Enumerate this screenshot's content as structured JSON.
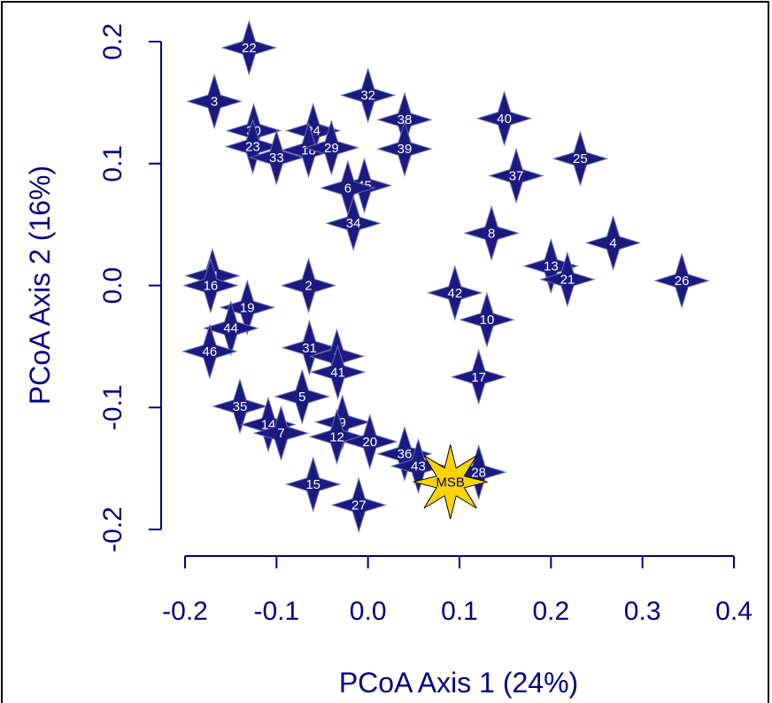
{
  "chart_data": {
    "type": "scatter",
    "xlabel": "PCoA Axis 1 (24%)",
    "ylabel": "PCoA Axis 2 (16%)",
    "xlim": [
      -0.2,
      0.4
    ],
    "ylim": [
      -0.2,
      0.2
    ],
    "xticks": [
      -0.2,
      -0.1,
      0.0,
      0.1,
      0.2,
      0.3,
      0.4
    ],
    "xtick_labels": [
      "-0.2",
      "-0.1",
      "0.0",
      "0.1",
      "0.2",
      "0.3",
      "0.4"
    ],
    "yticks": [
      -0.2,
      -0.1,
      0.0,
      0.1,
      0.2
    ],
    "ytick_labels": [
      "-0.2",
      "-0.1",
      "0.0",
      "0.1",
      "0.2"
    ],
    "grid": false,
    "colors": {
      "axis": "#000080",
      "point_fill": "#1a1a80",
      "point_stroke": "#6a6ab0",
      "point_text": "#ffffff",
      "highlight_fill": "#ffd400",
      "highlight_stroke": "#000000",
      "frame": "#000000"
    },
    "points": [
      {
        "label": "22",
        "x": -0.13,
        "y": 0.195
      },
      {
        "label": "3",
        "x": -0.168,
        "y": 0.151
      },
      {
        "label": "32",
        "x": 0.0,
        "y": 0.156
      },
      {
        "label": "38",
        "x": 0.04,
        "y": 0.136
      },
      {
        "label": "40",
        "x": 0.149,
        "y": 0.137
      },
      {
        "label": "30",
        "x": -0.125,
        "y": 0.127
      },
      {
        "label": "24",
        "x": -0.06,
        "y": 0.127
      },
      {
        "label": "23",
        "x": -0.126,
        "y": 0.114
      },
      {
        "label": "33",
        "x": -0.1,
        "y": 0.105
      },
      {
        "label": "18",
        "x": -0.065,
        "y": 0.111
      },
      {
        "label": "29",
        "x": -0.04,
        "y": 0.113
      },
      {
        "label": "39",
        "x": 0.04,
        "y": 0.112
      },
      {
        "label": "25",
        "x": 0.232,
        "y": 0.104
      },
      {
        "label": "37",
        "x": 0.162,
        "y": 0.09
      },
      {
        "label": "45",
        "x": -0.004,
        "y": 0.082
      },
      {
        "label": "6",
        "x": -0.022,
        "y": 0.08
      },
      {
        "label": "34",
        "x": -0.016,
        "y": 0.051
      },
      {
        "label": "8",
        "x": 0.135,
        "y": 0.043
      },
      {
        "label": "4",
        "x": 0.268,
        "y": 0.035
      },
      {
        "label": "13",
        "x": 0.2,
        "y": 0.016
      },
      {
        "label": "21",
        "x": 0.218,
        "y": 0.005
      },
      {
        "label": "26",
        "x": 0.343,
        "y": 0.004
      },
      {
        "label": "11",
        "x": -0.17,
        "y": 0.008
      },
      {
        "label": "16",
        "x": -0.172,
        "y": 0.0
      },
      {
        "label": "2",
        "x": -0.065,
        "y": 0.0
      },
      {
        "label": "42",
        "x": 0.095,
        "y": -0.006
      },
      {
        "label": "19",
        "x": -0.132,
        "y": -0.018
      },
      {
        "label": "10",
        "x": 0.13,
        "y": -0.028
      },
      {
        "label": "44",
        "x": -0.15,
        "y": -0.035
      },
      {
        "label": "46",
        "x": -0.173,
        "y": -0.054
      },
      {
        "label": "31",
        "x": -0.064,
        "y": -0.051
      },
      {
        "label": "1",
        "x": -0.034,
        "y": -0.058
      },
      {
        "label": "41",
        "x": -0.033,
        "y": -0.071
      },
      {
        "label": "17",
        "x": 0.121,
        "y": -0.075
      },
      {
        "label": "5",
        "x": -0.072,
        "y": -0.091
      },
      {
        "label": "35",
        "x": -0.14,
        "y": -0.099
      },
      {
        "label": "14",
        "x": -0.109,
        "y": -0.114
      },
      {
        "label": "7",
        "x": -0.095,
        "y": -0.121
      },
      {
        "label": "9",
        "x": -0.028,
        "y": -0.112
      },
      {
        "label": "12",
        "x": -0.034,
        "y": -0.124
      },
      {
        "label": "20",
        "x": 0.002,
        "y": -0.128
      },
      {
        "label": "36",
        "x": 0.04,
        "y": -0.138
      },
      {
        "label": "43",
        "x": 0.055,
        "y": -0.148
      },
      {
        "label": "28",
        "x": 0.121,
        "y": -0.153
      },
      {
        "label": "15",
        "x": -0.06,
        "y": -0.163
      },
      {
        "label": "27",
        "x": -0.01,
        "y": -0.18
      }
    ],
    "highlight": {
      "label": "MSB",
      "x": 0.09,
      "y": -0.161
    }
  }
}
